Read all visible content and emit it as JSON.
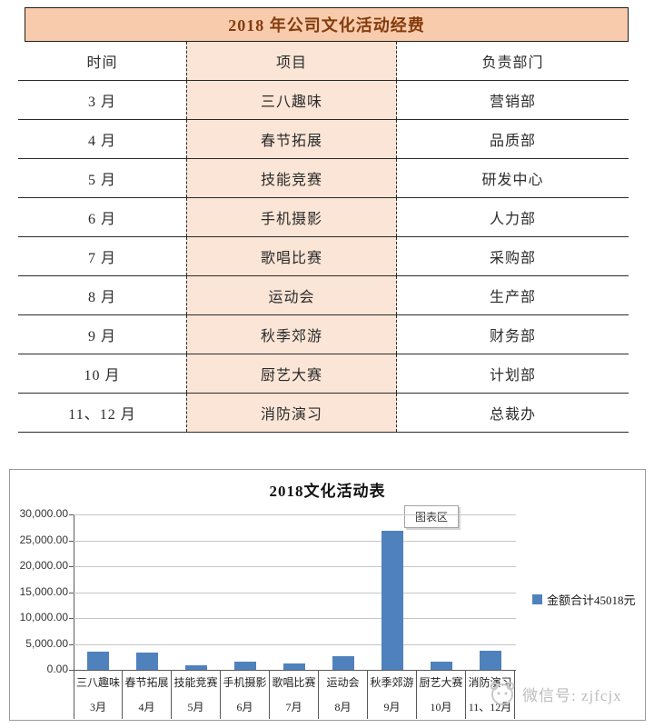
{
  "table": {
    "title": "2018 年公司文化活动经费",
    "headers": [
      "时间",
      "项目",
      "负责部门"
    ],
    "rows": [
      [
        "3 月",
        "三八趣味",
        "营销部"
      ],
      [
        "4 月",
        "春节拓展",
        "品质部"
      ],
      [
        "5 月",
        "技能竞赛",
        "研发中心"
      ],
      [
        "6 月",
        "手机摄影",
        "人力部"
      ],
      [
        "7 月",
        "歌唱比赛",
        "采购部"
      ],
      [
        "8 月",
        "运动会",
        "生产部"
      ],
      [
        "9 月",
        "秋季郊游",
        "财务部"
      ],
      [
        "10 月",
        "厨艺大赛",
        "计划部"
      ],
      [
        "11、12 月",
        "消防演习",
        "总裁办"
      ]
    ],
    "colors": {
      "title_bg": "#F8CBAD",
      "title_text": "#843C0C",
      "highlight_column_bg": "#FBE5D6"
    }
  },
  "chart": {
    "tooltip_label": "图表区",
    "watermark_text": "微信号: zjfcjx",
    "bar_color": "#4F81BD"
  },
  "chart_data": {
    "type": "bar",
    "title": "2018文化活动表",
    "categories": [
      "三八趣味",
      "春节拓展",
      "技能竞赛",
      "手机摄影",
      "歌唱比赛",
      "运动会",
      "秋季郊游",
      "厨艺大赛",
      "消防演习"
    ],
    "x_secondary": [
      "3月",
      "4月",
      "5月",
      "6月",
      "7月",
      "8月",
      "9月",
      "10月",
      "11、12月"
    ],
    "values": [
      3500,
      3300,
      900,
      1600,
      1300,
      2600,
      26900,
      1600,
      3700
    ],
    "y_ticks": [
      "30,000.00",
      "25,000.00",
      "20,000.00",
      "15,000.00",
      "10,000.00",
      "5,000.00",
      "0.00"
    ],
    "ylim": [
      0,
      30000
    ],
    "legend": [
      "金额合计45018元"
    ],
    "legend_position": "right",
    "grid": true,
    "xlabel": "",
    "ylabel": ""
  }
}
